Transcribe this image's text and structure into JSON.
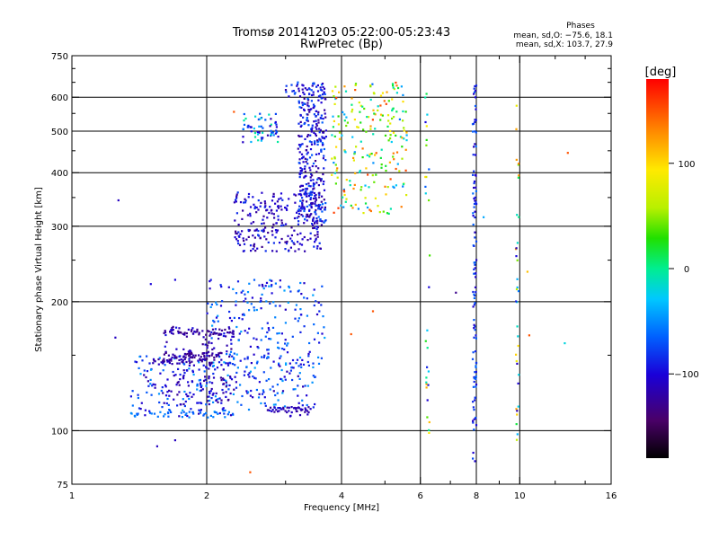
{
  "title": {
    "line1": "Tromsø 20141203 05:22:00-05:23:43",
    "line2": "RwPretec (Bp)"
  },
  "phase_info": {
    "header": "Phases",
    "o_line": "mean, sd,O: −75.6, 18.1",
    "x_line": "mean, sd,X: 103.7, 27.9"
  },
  "axes": {
    "xlabel": "Frequency [MHz]",
    "ylabel": "Stationary phase Virtual Height [km]",
    "xlim": [
      1,
      16
    ],
    "ylim": [
      75,
      750
    ],
    "xscale": "log",
    "yscale": "log",
    "x_ticks": [
      1,
      2,
      4,
      6,
      8,
      10,
      16
    ],
    "x_tick_labels": [
      "1",
      "2",
      "4",
      "6",
      "8",
      "10",
      "16"
    ],
    "y_ticks": [
      75,
      100,
      200,
      300,
      400,
      500,
      600,
      750
    ],
    "y_tick_labels": [
      "75",
      "100",
      "200",
      "300",
      "400",
      "500",
      "600",
      "750"
    ],
    "x_gridlines": [
      2,
      4,
      6,
      8,
      10
    ],
    "y_gridlines": [
      100,
      200,
      300,
      400,
      500,
      600
    ],
    "grid": true
  },
  "colorbar": {
    "unit_label": "[deg]",
    "tick_labels": [
      "100",
      "0",
      "−100"
    ],
    "tick_values": [
      100,
      0,
      -100
    ],
    "range": [
      -180,
      180
    ]
  },
  "chart_data": {
    "type": "scatter",
    "xlabel": "Frequency [MHz]",
    "ylabel": "Stationary phase Virtual Height [km]",
    "xlim": [
      1,
      16
    ],
    "ylim": [
      75,
      750
    ],
    "color_value": "phase [deg]",
    "clusters": [
      {
        "n": 260,
        "x": [
          1.35,
          3.5
        ],
        "y": [
          108,
          150
        ],
        "phase": [
          -120,
          -40
        ]
      },
      {
        "n": 160,
        "x": [
          1.6,
          2.3
        ],
        "y": [
          115,
          175
        ],
        "phase": [
          -130,
          -90
        ]
      },
      {
        "n": 200,
        "x": [
          2.0,
          3.7
        ],
        "y": [
          140,
          225
        ],
        "phase": [
          -110,
          -40
        ]
      },
      {
        "n": 240,
        "x": [
          2.3,
          3.6
        ],
        "y": [
          262,
          360
        ],
        "phase": [
          -130,
          -80
        ]
      },
      {
        "n": 300,
        "x": [
          3.2,
          3.7
        ],
        "y": [
          300,
          600
        ],
        "phase": [
          -130,
          -60
        ]
      },
      {
        "n": 60,
        "x": [
          2.4,
          2.9
        ],
        "y": [
          470,
          550
        ],
        "phase": [
          -120,
          0
        ]
      },
      {
        "n": 50,
        "x": [
          3.0,
          3.7
        ],
        "y": [
          600,
          650
        ],
        "phase": [
          -120,
          -60
        ]
      },
      {
        "n": 220,
        "x": [
          3.8,
          5.6
        ],
        "y": [
          320,
          650
        ],
        "phase": [
          -60,
          160
        ]
      },
      {
        "n": 110,
        "x": [
          7.85,
          8.0
        ],
        "y": [
          82,
          640
        ],
        "phase": [
          -110,
          -60
        ]
      },
      {
        "n": 35,
        "x": [
          9.8,
          9.95
        ],
        "y": [
          90,
          580
        ],
        "phase": [
          -120,
          140
        ]
      },
      {
        "n": 30,
        "x": [
          6.15,
          6.3
        ],
        "y": [
          96,
          630
        ],
        "phase": [
          -110,
          140
        ]
      }
    ],
    "sweeps": [
      {
        "x": [
          1.6,
          2.3
        ],
        "y": 170,
        "phase": -125
      },
      {
        "x": [
          1.6,
          2.2
        ],
        "y": 150,
        "phase": -125
      },
      {
        "x": [
          1.5,
          2.1
        ],
        "y": 145,
        "phase": -120
      },
      {
        "x": [
          1.35,
          2.3
        ],
        "y": 109,
        "phase": -60
      },
      {
        "x": [
          2.7,
          3.5
        ],
        "y": 112,
        "phase": -115
      }
    ],
    "isolated_points": [
      {
        "x": 1.27,
        "y": 345,
        "phase": -110
      },
      {
        "x": 1.25,
        "y": 165,
        "phase": -110
      },
      {
        "x": 1.55,
        "y": 92,
        "phase": -110
      },
      {
        "x": 1.7,
        "y": 95,
        "phase": -110
      },
      {
        "x": 2.5,
        "y": 80,
        "phase": 150
      },
      {
        "x": 1.5,
        "y": 220,
        "phase": -100
      },
      {
        "x": 1.7,
        "y": 225,
        "phase": -100
      },
      {
        "x": 4.2,
        "y": 168,
        "phase": 150
      },
      {
        "x": 4.7,
        "y": 190,
        "phase": 150
      },
      {
        "x": 7.2,
        "y": 210,
        "phase": -130
      },
      {
        "x": 8.3,
        "y": 315,
        "phase": -40
      },
      {
        "x": 10.4,
        "y": 235,
        "phase": 110
      },
      {
        "x": 12.6,
        "y": 160,
        "phase": -20
      },
      {
        "x": 12.8,
        "y": 445,
        "phase": 150
      },
      {
        "x": 10.5,
        "y": 167,
        "phase": 150
      },
      {
        "x": 2.3,
        "y": 555,
        "phase": 150
      }
    ]
  }
}
